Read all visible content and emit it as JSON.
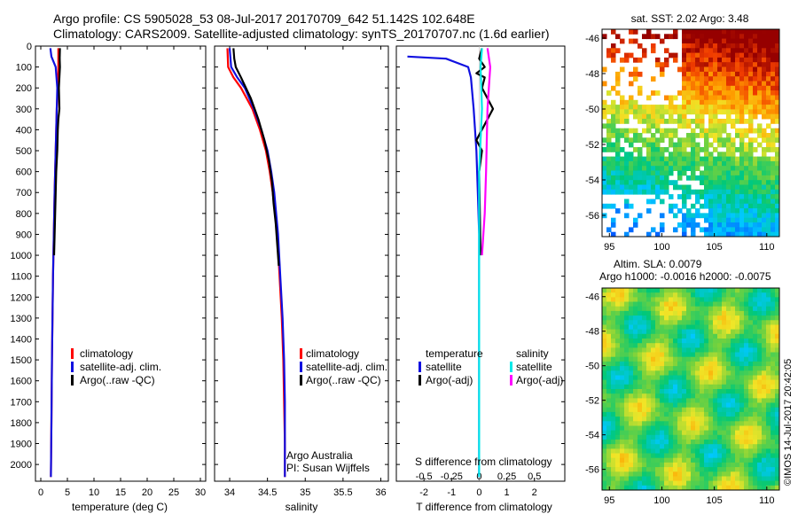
{
  "header": {
    "title_line1": "Argo profile: CS 5905028_53 08-Jul-2017 20170709_642 51.142S 102.648E",
    "title_line2": "Climatology: CARS2009. Satellite-adjusted climatology: synTS_20170707.nc (1.6d earlier)"
  },
  "colors": {
    "climatology": "#ff0000",
    "satellite": "#1010e0",
    "argo": "#000000",
    "satellite_diff": "#00e8e8",
    "argo_salinity_diff": "#ff00ff"
  },
  "chart_data": [
    {
      "type": "line",
      "panel": "temperature",
      "xlabel": "temperature (deg C)",
      "ylabel": "",
      "xlim": [
        -1,
        31
      ],
      "ylim": [
        2080,
        0
      ],
      "xticks": [
        0,
        5,
        10,
        15,
        20,
        25,
        30
      ],
      "yticks": [
        0,
        100,
        200,
        300,
        400,
        500,
        600,
        700,
        800,
        900,
        1000,
        1100,
        1200,
        1300,
        1400,
        1500,
        1600,
        1700,
        1800,
        1900,
        2000
      ],
      "legend": [
        "climatology",
        "satellite-adj. clim.",
        "Argo(..raw -QC)"
      ],
      "series": [
        {
          "name": "climatology",
          "color": "#ff0000",
          "x": [
            3.3,
            3.3,
            3.2,
            3.0,
            2.9,
            2.8,
            2.6,
            2.45,
            2.3,
            2.2,
            2.1,
            2.0,
            1.9
          ],
          "y": [
            10,
            100,
            200,
            300,
            400,
            500,
            700,
            900,
            1100,
            1300,
            1500,
            1800,
            2060
          ]
        },
        {
          "name": "satellite-adj. clim.",
          "color": "#1010e0",
          "x": [
            1.8,
            2.0,
            2.8,
            3.1,
            3.0,
            2.9,
            2.8,
            2.6,
            2.45,
            2.3,
            2.2,
            2.1,
            2.0,
            1.9
          ],
          "y": [
            10,
            50,
            100,
            200,
            300,
            400,
            500,
            700,
            900,
            1100,
            1300,
            1500,
            1800,
            2060
          ]
        },
        {
          "name": "Argo(..raw -QC)",
          "color": "#000000",
          "x": [
            3.6,
            3.55,
            3.6,
            3.4,
            3.5,
            3.3,
            3.2,
            3.1,
            2.9,
            2.8,
            2.7,
            2.6,
            2.5
          ],
          "y": [
            10,
            60,
            100,
            200,
            300,
            350,
            400,
            500,
            600,
            700,
            800,
            900,
            1000
          ]
        }
      ]
    },
    {
      "type": "line",
      "panel": "salinity",
      "xlabel": "salinity",
      "ylabel": "",
      "xlim": [
        33.8,
        36.1
      ],
      "ylim": [
        2080,
        0
      ],
      "xticks": [
        34,
        34.5,
        35,
        35.5,
        36
      ],
      "yticks": [],
      "legend": [
        "climatology",
        "satellite-adj. clim.",
        "Argo(..raw -QC)"
      ],
      "credit_line1": "Argo Australia",
      "credit_line2": "PI: Susan Wijffels",
      "series": [
        {
          "name": "climatology",
          "color": "#ff0000",
          "x": [
            33.97,
            33.98,
            34.05,
            34.15,
            34.3,
            34.4,
            34.48,
            34.53,
            34.57,
            34.63,
            34.66,
            34.69,
            34.71,
            34.72,
            34.73,
            34.73
          ],
          "y": [
            10,
            100,
            150,
            200,
            300,
            400,
            500,
            600,
            700,
            900,
            1100,
            1300,
            1500,
            1700,
            1900,
            2060
          ]
        },
        {
          "name": "satellite-adj. clim.",
          "color": "#1010e0",
          "x": [
            34.0,
            34.02,
            34.1,
            34.2,
            34.32,
            34.42,
            34.5,
            34.55,
            34.59,
            34.64,
            34.67,
            34.7,
            34.72,
            34.73,
            34.73,
            34.73
          ],
          "y": [
            10,
            100,
            150,
            200,
            300,
            400,
            500,
            600,
            700,
            900,
            1100,
            1300,
            1500,
            1700,
            1900,
            2060
          ]
        },
        {
          "name": "Argo(..raw -QC)",
          "color": "#000000",
          "x": [
            34.05,
            34.06,
            34.08,
            34.15,
            34.28,
            34.38,
            34.46,
            34.52,
            34.56,
            34.58,
            34.61,
            34.63,
            34.65
          ],
          "y": [
            10,
            60,
            100,
            150,
            250,
            350,
            450,
            550,
            650,
            750,
            850,
            950,
            1050
          ]
        }
      ]
    },
    {
      "type": "line",
      "panel": "difference",
      "xlabel": "T difference from climatology",
      "xlabel_top": "S difference from climatology",
      "xlim": [
        -3,
        3.1
      ],
      "xticks_T": [
        -2,
        -1,
        0,
        1,
        2
      ],
      "xticks_S_labels": [
        "-0.5",
        "-0.25",
        "0",
        "0.25",
        "0.5"
      ],
      "xticks_S_positions": [
        -2,
        -1,
        0,
        1,
        2
      ],
      "ylim": [
        2080,
        0
      ],
      "legend_temperature_title": "temperature",
      "legend_salinity_title": "salinity",
      "legend": [
        "satellite",
        "Argo(-adj)",
        "satellite",
        "Argo(-adj)"
      ],
      "series": [
        {
          "name": "temperature satellite",
          "color": "#1010e0",
          "x": [
            -2.6,
            -1.2,
            -0.4,
            -0.3,
            -0.2,
            -0.1,
            -0.05,
            0,
            0,
            0,
            0
          ],
          "y": [
            50,
            60,
            100,
            150,
            300,
            500,
            700,
            900,
            1200,
            1600,
            2060
          ]
        },
        {
          "name": "temperature Argo(-adj)",
          "color": "#000000",
          "x": [
            0.1,
            0.0,
            0.2,
            -0.1,
            0.2,
            0.1,
            0.5,
            -0.1,
            0.1,
            0.0,
            0.05
          ],
          "y": [
            10,
            60,
            100,
            130,
            150,
            200,
            300,
            450,
            500,
            600,
            1000
          ]
        },
        {
          "name": "salinity satellite",
          "color": "#00e8e8",
          "x": [
            0.1,
            0.05,
            0.1,
            0.0,
            0.0,
            0.0,
            0.0
          ],
          "y": [
            10,
            100,
            300,
            600,
            1000,
            1500,
            2060
          ]
        },
        {
          "name": "salinity Argo(-adj)",
          "color": "#ff00ff",
          "x": [
            0.3,
            0.4,
            0.3,
            0.25,
            0.2,
            0.1
          ],
          "y": [
            10,
            100,
            300,
            600,
            800,
            1000
          ]
        }
      ]
    }
  ],
  "maps": {
    "sst": {
      "title": "sat. SST: 2.02 Argo: 3.48",
      "xticks": [
        95,
        100,
        105,
        110
      ],
      "yticks": [
        -46,
        -48,
        -50,
        -52,
        -54,
        -56
      ]
    },
    "sla": {
      "title_line1": "Altim. SLA: 0.0079",
      "title_line2": "Argo h1000: -0.0016 h2000: -0.0075",
      "xticks": [
        95,
        100,
        105,
        110
      ],
      "yticks": [
        -46,
        -48,
        -50,
        -52,
        -54,
        -56
      ],
      "side_label": "©IMOS 14-Jul-2017 20:42:05"
    }
  }
}
